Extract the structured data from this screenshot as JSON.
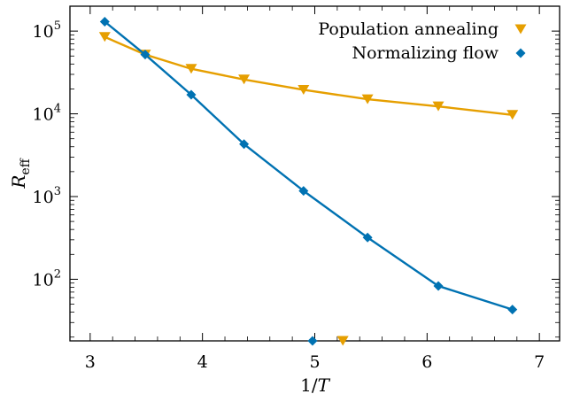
{
  "chart_data": {
    "type": "line",
    "xlabel": "1/T",
    "ylabel": "R",
    "ylabel_sub": "eff",
    "yscale": "log",
    "xlim": [
      2.82,
      7.18
    ],
    "ylim": [
      18,
      200000
    ],
    "grid": false,
    "legend_position": "top-right",
    "x_ticks": [
      3,
      4,
      5,
      6,
      7
    ],
    "x_tick_labels": [
      "3",
      "4",
      "5",
      "6",
      "7"
    ],
    "y_ticks": [
      100,
      1000,
      10000,
      100000
    ],
    "y_tick_labels": [
      {
        "base": "10",
        "exp": "2"
      },
      {
        "base": "10",
        "exp": "3"
      },
      {
        "base": "10",
        "exp": "4"
      },
      {
        "base": "10",
        "exp": "5"
      }
    ],
    "series": [
      {
        "name": "Population annealing",
        "color": "#e69f00",
        "marker": "triangle-down",
        "x": [
          3.13,
          3.49,
          3.9,
          4.37,
          4.9,
          5.47,
          6.1,
          6.76
        ],
        "y": [
          85000,
          52000,
          35000,
          26000,
          19500,
          15000,
          12300,
          9700
        ]
      },
      {
        "name": "Normalizing flow",
        "color": "#0072b2",
        "marker": "diamond",
        "x": [
          3.13,
          3.49,
          3.9,
          4.37,
          4.9,
          5.47,
          6.1,
          6.76
        ],
        "y": [
          130000,
          52000,
          17000,
          4300,
          1170,
          320,
          83,
          43
        ]
      }
    ],
    "axis_markers": [
      {
        "x": 4.98,
        "color": "#0072b2",
        "marker": "diamond"
      },
      {
        "x": 5.25,
        "color": "#e69f00",
        "marker": "triangle-down"
      }
    ]
  }
}
